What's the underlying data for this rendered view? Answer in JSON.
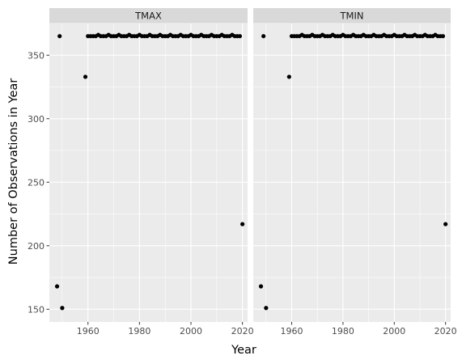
{
  "chart_data": {
    "type": "scatter",
    "xlabel": "Year",
    "ylabel": "Number of Observations in Year",
    "xlim": [
      1945,
      2022
    ],
    "ylim": [
      140,
      375
    ],
    "x_breaks": [
      1960,
      1980,
      2000,
      2020
    ],
    "x_tick_labels": [
      "1960",
      "1980",
      "2000",
      "2020"
    ],
    "y_breaks": [
      150,
      200,
      250,
      300,
      350
    ],
    "y_tick_labels": [
      "150",
      "200",
      "250",
      "300",
      "350"
    ],
    "grid": true,
    "facets": [
      {
        "name": "TMAX",
        "points": [
          {
            "x": 1948,
            "y": 168
          },
          {
            "x": 1949,
            "y": 365
          },
          {
            "x": 1950,
            "y": 151
          },
          {
            "x": 1959,
            "y": 333
          },
          {
            "x": 1960,
            "y": 365
          },
          {
            "x": 1961,
            "y": 365
          },
          {
            "x": 1962,
            "y": 365
          },
          {
            "x": 1963,
            "y": 365
          },
          {
            "x": 1964,
            "y": 366
          },
          {
            "x": 1965,
            "y": 365
          },
          {
            "x": 1966,
            "y": 365
          },
          {
            "x": 1967,
            "y": 365
          },
          {
            "x": 1968,
            "y": 366
          },
          {
            "x": 1969,
            "y": 365
          },
          {
            "x": 1970,
            "y": 365
          },
          {
            "x": 1971,
            "y": 365
          },
          {
            "x": 1972,
            "y": 366
          },
          {
            "x": 1973,
            "y": 365
          },
          {
            "x": 1974,
            "y": 365
          },
          {
            "x": 1975,
            "y": 365
          },
          {
            "x": 1976,
            "y": 366
          },
          {
            "x": 1977,
            "y": 365
          },
          {
            "x": 1978,
            "y": 365
          },
          {
            "x": 1979,
            "y": 365
          },
          {
            "x": 1980,
            "y": 366
          },
          {
            "x": 1981,
            "y": 365
          },
          {
            "x": 1982,
            "y": 365
          },
          {
            "x": 1983,
            "y": 365
          },
          {
            "x": 1984,
            "y": 366
          },
          {
            "x": 1985,
            "y": 365
          },
          {
            "x": 1986,
            "y": 365
          },
          {
            "x": 1987,
            "y": 365
          },
          {
            "x": 1988,
            "y": 366
          },
          {
            "x": 1989,
            "y": 365
          },
          {
            "x": 1990,
            "y": 365
          },
          {
            "x": 1991,
            "y": 365
          },
          {
            "x": 1992,
            "y": 366
          },
          {
            "x": 1993,
            "y": 365
          },
          {
            "x": 1994,
            "y": 365
          },
          {
            "x": 1995,
            "y": 365
          },
          {
            "x": 1996,
            "y": 366
          },
          {
            "x": 1997,
            "y": 365
          },
          {
            "x": 1998,
            "y": 365
          },
          {
            "x": 1999,
            "y": 365
          },
          {
            "x": 2000,
            "y": 366
          },
          {
            "x": 2001,
            "y": 365
          },
          {
            "x": 2002,
            "y": 365
          },
          {
            "x": 2003,
            "y": 365
          },
          {
            "x": 2004,
            "y": 366
          },
          {
            "x": 2005,
            "y": 365
          },
          {
            "x": 2006,
            "y": 365
          },
          {
            "x": 2007,
            "y": 365
          },
          {
            "x": 2008,
            "y": 366
          },
          {
            "x": 2009,
            "y": 365
          },
          {
            "x": 2010,
            "y": 365
          },
          {
            "x": 2011,
            "y": 365
          },
          {
            "x": 2012,
            "y": 366
          },
          {
            "x": 2013,
            "y": 365
          },
          {
            "x": 2014,
            "y": 365
          },
          {
            "x": 2015,
            "y": 365
          },
          {
            "x": 2016,
            "y": 366
          },
          {
            "x": 2017,
            "y": 365
          },
          {
            "x": 2018,
            "y": 365
          },
          {
            "x": 2019,
            "y": 365
          },
          {
            "x": 2020,
            "y": 217
          }
        ]
      },
      {
        "name": "TMIN",
        "points": [
          {
            "x": 1948,
            "y": 168
          },
          {
            "x": 1949,
            "y": 365
          },
          {
            "x": 1950,
            "y": 151
          },
          {
            "x": 1959,
            "y": 333
          },
          {
            "x": 1960,
            "y": 365
          },
          {
            "x": 1961,
            "y": 365
          },
          {
            "x": 1962,
            "y": 365
          },
          {
            "x": 1963,
            "y": 365
          },
          {
            "x": 1964,
            "y": 366
          },
          {
            "x": 1965,
            "y": 365
          },
          {
            "x": 1966,
            "y": 365
          },
          {
            "x": 1967,
            "y": 365
          },
          {
            "x": 1968,
            "y": 366
          },
          {
            "x": 1969,
            "y": 365
          },
          {
            "x": 1970,
            "y": 365
          },
          {
            "x": 1971,
            "y": 365
          },
          {
            "x": 1972,
            "y": 366
          },
          {
            "x": 1973,
            "y": 365
          },
          {
            "x": 1974,
            "y": 365
          },
          {
            "x": 1975,
            "y": 365
          },
          {
            "x": 1976,
            "y": 366
          },
          {
            "x": 1977,
            "y": 365
          },
          {
            "x": 1978,
            "y": 365
          },
          {
            "x": 1979,
            "y": 365
          },
          {
            "x": 1980,
            "y": 366
          },
          {
            "x": 1981,
            "y": 365
          },
          {
            "x": 1982,
            "y": 365
          },
          {
            "x": 1983,
            "y": 365
          },
          {
            "x": 1984,
            "y": 366
          },
          {
            "x": 1985,
            "y": 365
          },
          {
            "x": 1986,
            "y": 365
          },
          {
            "x": 1987,
            "y": 365
          },
          {
            "x": 1988,
            "y": 366
          },
          {
            "x": 1989,
            "y": 365
          },
          {
            "x": 1990,
            "y": 365
          },
          {
            "x": 1991,
            "y": 365
          },
          {
            "x": 1992,
            "y": 366
          },
          {
            "x": 1993,
            "y": 365
          },
          {
            "x": 1994,
            "y": 365
          },
          {
            "x": 1995,
            "y": 365
          },
          {
            "x": 1996,
            "y": 366
          },
          {
            "x": 1997,
            "y": 365
          },
          {
            "x": 1998,
            "y": 365
          },
          {
            "x": 1999,
            "y": 365
          },
          {
            "x": 2000,
            "y": 366
          },
          {
            "x": 2001,
            "y": 365
          },
          {
            "x": 2002,
            "y": 365
          },
          {
            "x": 2003,
            "y": 365
          },
          {
            "x": 2004,
            "y": 366
          },
          {
            "x": 2005,
            "y": 365
          },
          {
            "x": 2006,
            "y": 365
          },
          {
            "x": 2007,
            "y": 365
          },
          {
            "x": 2008,
            "y": 366
          },
          {
            "x": 2009,
            "y": 365
          },
          {
            "x": 2010,
            "y": 365
          },
          {
            "x": 2011,
            "y": 365
          },
          {
            "x": 2012,
            "y": 366
          },
          {
            "x": 2013,
            "y": 365
          },
          {
            "x": 2014,
            "y": 365
          },
          {
            "x": 2015,
            "y": 365
          },
          {
            "x": 2016,
            "y": 366
          },
          {
            "x": 2017,
            "y": 365
          },
          {
            "x": 2018,
            "y": 365
          },
          {
            "x": 2019,
            "y": 365
          },
          {
            "x": 2020,
            "y": 217
          }
        ]
      }
    ]
  }
}
